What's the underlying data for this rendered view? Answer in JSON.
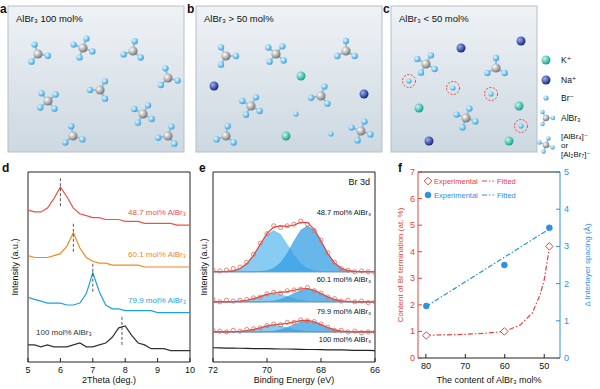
{
  "schematics": {
    "panels": [
      {
        "panel_label": "a",
        "title": "AlBr₃ 100 mol%"
      },
      {
        "panel_label": "b",
        "title": "AlBr₃ > 50 mol%"
      },
      {
        "panel_label": "c",
        "title": "AlBr₃ < 50 mol%"
      }
    ],
    "legend": [
      {
        "label": "K⁺"
      },
      {
        "label": "Na⁺"
      },
      {
        "label": "Br⁻"
      },
      {
        "label": "AlBr₃"
      },
      {
        "label": [
          "[AlBr₄]⁻",
          "or",
          "[Al₂Br₇]⁻"
        ]
      }
    ]
  },
  "chart_data": [
    {
      "panel_label": "d",
      "type": "line",
      "xlabel": "2Theta (deg.)",
      "ylabel": "Intensity (a.u.)",
      "x": [
        5,
        5.2,
        5.4,
        5.6,
        5.8,
        6,
        6.2,
        6.4,
        6.6,
        6.8,
        7,
        7.2,
        7.4,
        7.6,
        7.8,
        8,
        8.2,
        8.4,
        8.6,
        8.8,
        9,
        9.2,
        9.4,
        9.6,
        9.8,
        10
      ],
      "xlim": [
        5,
        10
      ],
      "xticks": [
        5,
        6,
        7,
        8,
        9,
        10
      ],
      "ylim": [
        0,
        10
      ],
      "tick_labels": "x",
      "series": [
        {
          "label": "48.7 mol% AlBr₃",
          "color": "#f0504a",
          "peak": 6.0,
          "values": [
            8.0,
            7.9,
            7.9,
            8.1,
            8.6,
            9.2,
            8.7,
            8.1,
            7.8,
            7.7,
            7.6,
            7.6,
            7.5,
            7.5,
            7.5,
            7.4,
            7.4,
            7.4,
            7.3,
            7.3,
            7.3,
            7.3,
            7.3,
            7.2,
            7.2,
            7.2
          ]
        },
        {
          "label": "60.1 mol% AlBr₃",
          "color": "#f08a24",
          "peak": 6.4,
          "values": [
            5.6,
            5.5,
            5.5,
            5.5,
            5.6,
            5.7,
            6.1,
            6.8,
            6.0,
            5.5,
            5.3,
            5.2,
            5.2,
            5.1,
            5.1,
            5.1,
            5.1,
            5.1,
            5.0,
            5.0,
            5.0,
            5.0,
            5.0,
            5.0,
            5.0,
            5.0
          ]
        },
        {
          "label": "79.9 mol% AlBr₃",
          "color": "#1fa0e2",
          "peak": 7.0,
          "values": [
            3.4,
            3.3,
            3.2,
            3.1,
            3.1,
            3.1,
            3.0,
            3.0,
            3.1,
            3.6,
            4.7,
            3.7,
            3.0,
            2.8,
            2.8,
            2.7,
            2.7,
            2.7,
            2.7,
            2.7,
            2.6,
            2.6,
            2.6,
            2.6,
            2.6,
            2.6
          ]
        },
        {
          "label": "100 mol% AlBr₃",
          "color": "#333333",
          "peak": 7.9,
          "values": [
            0.9,
            0.9,
            0.8,
            0.9,
            0.8,
            0.8,
            0.8,
            0.9,
            1.0,
            0.8,
            0.8,
            0.9,
            1.0,
            1.3,
            1.8,
            1.9,
            1.4,
            1.0,
            0.9,
            0.7,
            0.7,
            0.7,
            0.6,
            0.6,
            0.6,
            0.6
          ]
        }
      ]
    },
    {
      "panel_label": "e",
      "type": "line",
      "title": "Br 3d",
      "xlabel": "Binding Energy (eV)",
      "ylabel": "Intensity (a.u.)",
      "x": [
        72,
        71.75,
        71.5,
        71.25,
        71,
        70.75,
        70.5,
        70.25,
        70,
        69.75,
        69.5,
        69.25,
        69,
        68.75,
        68.5,
        68.25,
        68,
        67.75,
        67.5,
        67.25,
        67,
        66.75,
        66.5,
        66.25,
        66
      ],
      "xlim": [
        72,
        66
      ],
      "xticks": [
        72,
        70,
        68,
        66
      ],
      "ylim": [
        0,
        12
      ],
      "tick_labels": "x",
      "series": [
        {
          "type": "area",
          "color": "#5bb8ee",
          "baseline": 5.7,
          "values": [
            5.7,
            5.7,
            5.72,
            5.76,
            5.9,
            6.2,
            6.73,
            7.42,
            8.05,
            8.3,
            8.05,
            7.42,
            6.73,
            6.2,
            5.9,
            5.76,
            5.72,
            5.7,
            5.7,
            5.7,
            5.7,
            5.7,
            5.7,
            5.7,
            5.7
          ]
        },
        {
          "type": "area",
          "color": "#2e9be2",
          "baseline": 5.7,
          "values": [
            5.7,
            5.7,
            5.7,
            5.7,
            5.7,
            5.7,
            5.7,
            5.72,
            5.77,
            5.92,
            6.26,
            6.85,
            7.62,
            8.32,
            8.6,
            8.32,
            7.62,
            6.85,
            6.26,
            5.92,
            5.77,
            5.72,
            5.7,
            5.7,
            5.7
          ]
        },
        {
          "type": "line",
          "color": "#e0403a",
          "values": [
            5.7,
            5.7,
            5.72,
            5.76,
            5.9,
            6.2,
            6.73,
            7.44,
            8.12,
            8.52,
            8.6,
            8.57,
            8.65,
            8.82,
            8.8,
            8.38,
            7.64,
            6.85,
            6.26,
            5.92,
            5.77,
            5.72,
            5.7,
            5.7,
            5.7
          ]
        },
        {
          "type": "scatter",
          "marker": "open-circle",
          "color": "#e06a5a",
          "label": "48.7 mol% AlBr₃",
          "values": [
            5.8,
            5.75,
            5.8,
            5.9,
            6.0,
            6.3,
            6.8,
            7.5,
            8.1,
            8.6,
            8.5,
            8.6,
            8.7,
            8.9,
            8.7,
            8.3,
            7.7,
            6.9,
            6.3,
            5.9,
            5.8,
            5.7,
            5.75,
            5.7,
            5.65
          ]
        },
        {
          "type": "area",
          "color": "#5bb8ee",
          "baseline": 3.8,
          "values": [
            3.8,
            3.8,
            3.8,
            3.81,
            3.84,
            3.9,
            4.0,
            4.13,
            4.25,
            4.3,
            4.25,
            4.13,
            4.0,
            3.9,
            3.84,
            3.81,
            3.8,
            3.8,
            3.8,
            3.8,
            3.8,
            3.8,
            3.8,
            3.8,
            3.8
          ]
        },
        {
          "type": "area",
          "color": "#2e9be2",
          "baseline": 3.8,
          "values": [
            3.8,
            3.8,
            3.8,
            3.8,
            3.8,
            3.8,
            3.8,
            3.8,
            3.82,
            3.86,
            3.95,
            4.12,
            4.33,
            4.52,
            4.6,
            4.52,
            4.33,
            4.12,
            3.95,
            3.86,
            3.82,
            3.8,
            3.8,
            3.8,
            3.8
          ]
        },
        {
          "type": "line",
          "color": "#e0403a",
          "values": [
            3.8,
            3.8,
            3.8,
            3.81,
            3.84,
            3.9,
            4.0,
            4.13,
            4.27,
            4.36,
            4.4,
            4.45,
            4.53,
            4.62,
            4.64,
            4.53,
            4.33,
            4.12,
            3.95,
            3.86,
            3.82,
            3.8,
            3.8,
            3.8,
            3.8
          ]
        },
        {
          "type": "scatter",
          "marker": "open-circle",
          "color": "#e06a5a",
          "label": "60.1 mol% AlBr₃",
          "values": [
            3.95,
            3.8,
            3.9,
            3.85,
            3.9,
            3.95,
            4.05,
            4.1,
            4.3,
            4.4,
            4.35,
            4.5,
            4.55,
            4.6,
            4.7,
            4.5,
            4.35,
            4.1,
            4.0,
            3.85,
            3.9,
            3.8,
            3.85,
            3.75,
            3.8
          ]
        },
        {
          "type": "area",
          "color": "#5bb8ee",
          "baseline": 1.9,
          "values": [
            1.9,
            1.9,
            1.9,
            1.91,
            1.93,
            1.98,
            2.06,
            2.16,
            2.26,
            2.3,
            2.26,
            2.16,
            2.06,
            1.98,
            1.93,
            1.91,
            1.9,
            1.9,
            1.9,
            1.9,
            1.9,
            1.9,
            1.9,
            1.9,
            1.9
          ]
        },
        {
          "type": "area",
          "color": "#2e9be2",
          "baseline": 1.9,
          "values": [
            1.9,
            1.9,
            1.9,
            1.9,
            1.9,
            1.9,
            1.9,
            1.9,
            1.92,
            1.95,
            2.03,
            2.18,
            2.36,
            2.53,
            2.6,
            2.53,
            2.36,
            2.18,
            2.03,
            1.95,
            1.92,
            1.9,
            1.9,
            1.9,
            1.9
          ]
        },
        {
          "type": "line",
          "color": "#e0403a",
          "values": [
            1.9,
            1.9,
            1.9,
            1.91,
            1.93,
            1.98,
            2.06,
            2.16,
            2.28,
            2.35,
            2.39,
            2.44,
            2.52,
            2.61,
            2.63,
            2.54,
            2.36,
            2.18,
            2.03,
            1.95,
            1.92,
            1.9,
            1.9,
            1.9,
            1.9
          ]
        },
        {
          "type": "scatter",
          "marker": "open-circle",
          "color": "#e06a5a",
          "label": "79.9 mol% AlBr₃",
          "values": [
            2.0,
            1.95,
            1.9,
            2.0,
            1.95,
            2.05,
            2.1,
            2.15,
            2.3,
            2.4,
            2.35,
            2.5,
            2.5,
            2.65,
            2.6,
            2.55,
            2.4,
            2.2,
            2.0,
            2.0,
            1.9,
            1.95,
            1.85,
            1.9,
            1.9
          ]
        },
        {
          "type": "line",
          "color": "#222222",
          "label": "100 mol% AlBr₃",
          "values": [
            0.9,
            0.89,
            0.88,
            0.88,
            0.87,
            0.86,
            0.85,
            0.85,
            0.84,
            0.83,
            0.82,
            0.82,
            0.81,
            0.8,
            0.79,
            0.79,
            0.78,
            0.77,
            0.76,
            0.76,
            0.75,
            0.74,
            0.73,
            0.73,
            0.72
          ]
        }
      ]
    },
    {
      "panel_label": "f",
      "type": "scatter",
      "xlabel": "The content of AlBr₃ mol%",
      "ylabel": "Content of Br termination (at. %)",
      "y2label": "Δ Interlayer spacing (Å)",
      "xlim": [
        82,
        46
      ],
      "xticks": [
        80,
        70,
        60,
        50
      ],
      "ylim": [
        0,
        7
      ],
      "yticks": [
        0,
        1,
        2,
        3,
        4,
        5,
        6,
        7
      ],
      "y2lim": [
        0,
        5
      ],
      "y2ticks": [
        0,
        1,
        2,
        3,
        4,
        5
      ],
      "legend": "upper left",
      "series": [
        {
          "name": "Experimental",
          "type": "scatter",
          "marker": "open-diamond",
          "color": "#e8403a",
          "x": [
            79.9,
            60.1,
            48.7
          ],
          "values": [
            0.85,
            1.0,
            4.2
          ]
        },
        {
          "name": "Fitted",
          "type": "line",
          "line_style": "dashdot",
          "color": "#e8403a",
          "x": [
            80,
            75,
            70,
            65,
            60,
            56,
            53,
            51,
            50,
            48.7
          ],
          "values": [
            0.86,
            0.87,
            0.89,
            0.93,
            1.0,
            1.25,
            1.7,
            2.4,
            2.95,
            4.15
          ]
        },
        {
          "name": "Experimental",
          "type": "scatter",
          "marker": "circle",
          "color": "#2f8fe0",
          "axis": "y2",
          "x": [
            79.9,
            60.1,
            48.7
          ],
          "values": [
            1.4,
            2.5,
            3.5
          ]
        },
        {
          "name": "Fitted",
          "type": "line",
          "line_style": "dashdot",
          "color": "#2f8fe0",
          "axis": "y2",
          "x": [
            80,
            48.7
          ],
          "values": [
            1.38,
            3.47
          ]
        }
      ]
    }
  ]
}
